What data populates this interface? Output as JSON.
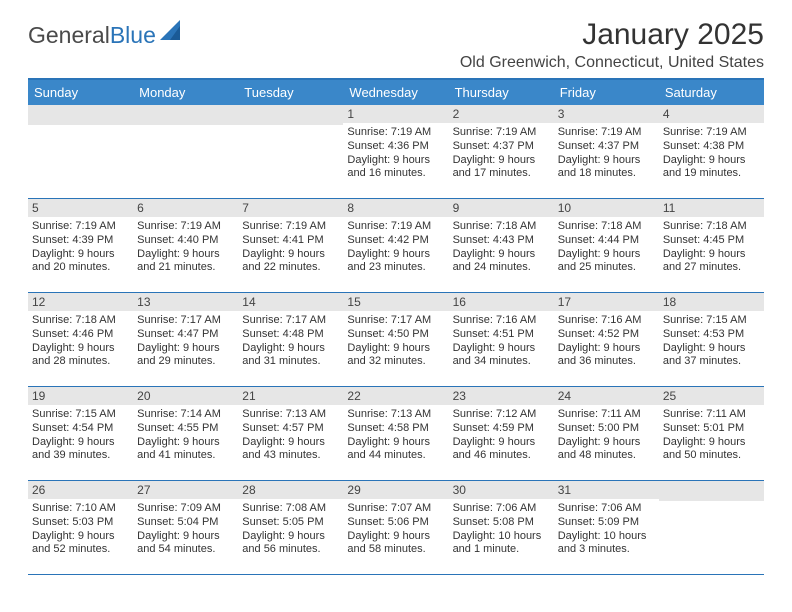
{
  "logo": {
    "word1": "General",
    "word2": "Blue"
  },
  "title": "January 2025",
  "location": "Old Greenwich, Connecticut, United States",
  "colors": {
    "header_bg": "#3a87c9",
    "border": "#2a74b8",
    "daynum_bg": "#e6e6e6"
  },
  "weekdays": [
    "Sunday",
    "Monday",
    "Tuesday",
    "Wednesday",
    "Thursday",
    "Friday",
    "Saturday"
  ],
  "weeks": [
    [
      {
        "day": "",
        "lines": []
      },
      {
        "day": "",
        "lines": []
      },
      {
        "day": "",
        "lines": []
      },
      {
        "day": "1",
        "lines": [
          "Sunrise: 7:19 AM",
          "Sunset: 4:36 PM",
          "Daylight: 9 hours and 16 minutes."
        ]
      },
      {
        "day": "2",
        "lines": [
          "Sunrise: 7:19 AM",
          "Sunset: 4:37 PM",
          "Daylight: 9 hours and 17 minutes."
        ]
      },
      {
        "day": "3",
        "lines": [
          "Sunrise: 7:19 AM",
          "Sunset: 4:37 PM",
          "Daylight: 9 hours and 18 minutes."
        ]
      },
      {
        "day": "4",
        "lines": [
          "Sunrise: 7:19 AM",
          "Sunset: 4:38 PM",
          "Daylight: 9 hours and 19 minutes."
        ]
      }
    ],
    [
      {
        "day": "5",
        "lines": [
          "Sunrise: 7:19 AM",
          "Sunset: 4:39 PM",
          "Daylight: 9 hours and 20 minutes."
        ]
      },
      {
        "day": "6",
        "lines": [
          "Sunrise: 7:19 AM",
          "Sunset: 4:40 PM",
          "Daylight: 9 hours and 21 minutes."
        ]
      },
      {
        "day": "7",
        "lines": [
          "Sunrise: 7:19 AM",
          "Sunset: 4:41 PM",
          "Daylight: 9 hours and 22 minutes."
        ]
      },
      {
        "day": "8",
        "lines": [
          "Sunrise: 7:19 AM",
          "Sunset: 4:42 PM",
          "Daylight: 9 hours and 23 minutes."
        ]
      },
      {
        "day": "9",
        "lines": [
          "Sunrise: 7:18 AM",
          "Sunset: 4:43 PM",
          "Daylight: 9 hours and 24 minutes."
        ]
      },
      {
        "day": "10",
        "lines": [
          "Sunrise: 7:18 AM",
          "Sunset: 4:44 PM",
          "Daylight: 9 hours and 25 minutes."
        ]
      },
      {
        "day": "11",
        "lines": [
          "Sunrise: 7:18 AM",
          "Sunset: 4:45 PM",
          "Daylight: 9 hours and 27 minutes."
        ]
      }
    ],
    [
      {
        "day": "12",
        "lines": [
          "Sunrise: 7:18 AM",
          "Sunset: 4:46 PM",
          "Daylight: 9 hours and 28 minutes."
        ]
      },
      {
        "day": "13",
        "lines": [
          "Sunrise: 7:17 AM",
          "Sunset: 4:47 PM",
          "Daylight: 9 hours and 29 minutes."
        ]
      },
      {
        "day": "14",
        "lines": [
          "Sunrise: 7:17 AM",
          "Sunset: 4:48 PM",
          "Daylight: 9 hours and 31 minutes."
        ]
      },
      {
        "day": "15",
        "lines": [
          "Sunrise: 7:17 AM",
          "Sunset: 4:50 PM",
          "Daylight: 9 hours and 32 minutes."
        ]
      },
      {
        "day": "16",
        "lines": [
          "Sunrise: 7:16 AM",
          "Sunset: 4:51 PM",
          "Daylight: 9 hours and 34 minutes."
        ]
      },
      {
        "day": "17",
        "lines": [
          "Sunrise: 7:16 AM",
          "Sunset: 4:52 PM",
          "Daylight: 9 hours and 36 minutes."
        ]
      },
      {
        "day": "18",
        "lines": [
          "Sunrise: 7:15 AM",
          "Sunset: 4:53 PM",
          "Daylight: 9 hours and 37 minutes."
        ]
      }
    ],
    [
      {
        "day": "19",
        "lines": [
          "Sunrise: 7:15 AM",
          "Sunset: 4:54 PM",
          "Daylight: 9 hours and 39 minutes."
        ]
      },
      {
        "day": "20",
        "lines": [
          "Sunrise: 7:14 AM",
          "Sunset: 4:55 PM",
          "Daylight: 9 hours and 41 minutes."
        ]
      },
      {
        "day": "21",
        "lines": [
          "Sunrise: 7:13 AM",
          "Sunset: 4:57 PM",
          "Daylight: 9 hours and 43 minutes."
        ]
      },
      {
        "day": "22",
        "lines": [
          "Sunrise: 7:13 AM",
          "Sunset: 4:58 PM",
          "Daylight: 9 hours and 44 minutes."
        ]
      },
      {
        "day": "23",
        "lines": [
          "Sunrise: 7:12 AM",
          "Sunset: 4:59 PM",
          "Daylight: 9 hours and 46 minutes."
        ]
      },
      {
        "day": "24",
        "lines": [
          "Sunrise: 7:11 AM",
          "Sunset: 5:00 PM",
          "Daylight: 9 hours and 48 minutes."
        ]
      },
      {
        "day": "25",
        "lines": [
          "Sunrise: 7:11 AM",
          "Sunset: 5:01 PM",
          "Daylight: 9 hours and 50 minutes."
        ]
      }
    ],
    [
      {
        "day": "26",
        "lines": [
          "Sunrise: 7:10 AM",
          "Sunset: 5:03 PM",
          "Daylight: 9 hours and 52 minutes."
        ]
      },
      {
        "day": "27",
        "lines": [
          "Sunrise: 7:09 AM",
          "Sunset: 5:04 PM",
          "Daylight: 9 hours and 54 minutes."
        ]
      },
      {
        "day": "28",
        "lines": [
          "Sunrise: 7:08 AM",
          "Sunset: 5:05 PM",
          "Daylight: 9 hours and 56 minutes."
        ]
      },
      {
        "day": "29",
        "lines": [
          "Sunrise: 7:07 AM",
          "Sunset: 5:06 PM",
          "Daylight: 9 hours and 58 minutes."
        ]
      },
      {
        "day": "30",
        "lines": [
          "Sunrise: 7:06 AM",
          "Sunset: 5:08 PM",
          "Daylight: 10 hours and 1 minute."
        ]
      },
      {
        "day": "31",
        "lines": [
          "Sunrise: 7:06 AM",
          "Sunset: 5:09 PM",
          "Daylight: 10 hours and 3 minutes."
        ]
      },
      {
        "day": "",
        "lines": []
      }
    ]
  ]
}
